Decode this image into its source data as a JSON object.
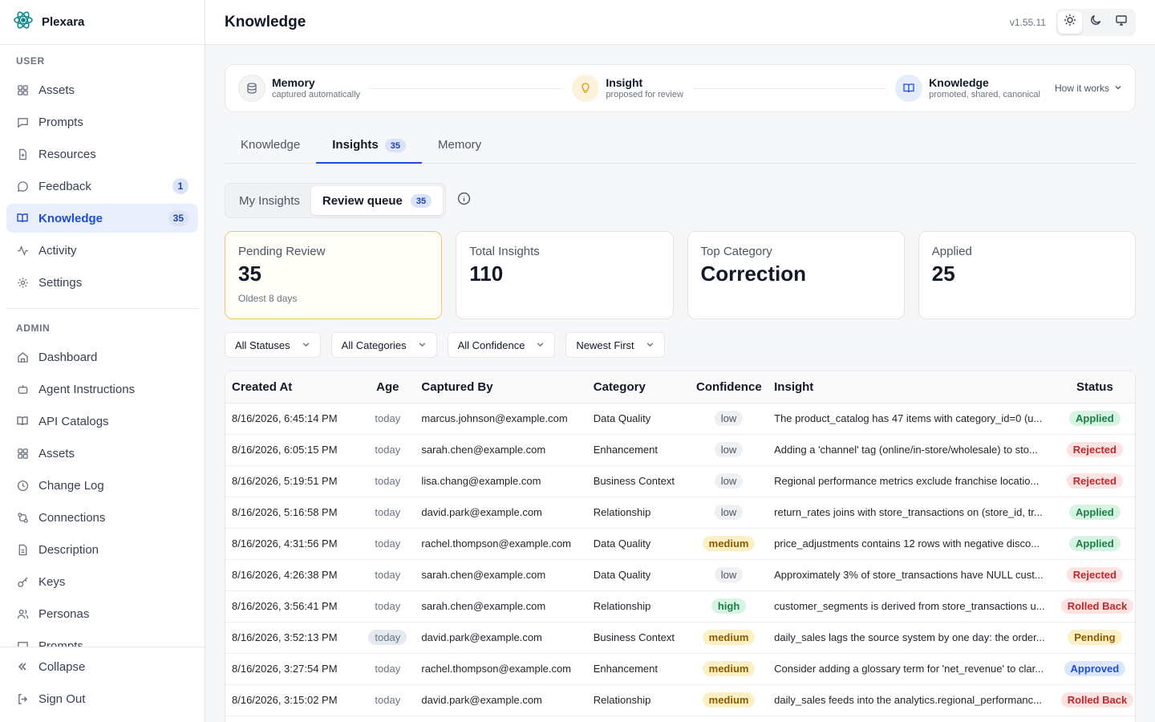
{
  "app": {
    "name": "Plexara",
    "version": "v1.55.11"
  },
  "page": {
    "title": "Knowledge"
  },
  "sidebar": {
    "user_label": "USER",
    "user_items": [
      {
        "label": "Assets",
        "icon": "grid-icon"
      },
      {
        "label": "Prompts",
        "icon": "message-square-icon"
      },
      {
        "label": "Resources",
        "icon": "file-plus-icon"
      },
      {
        "label": "Feedback",
        "icon": "message-circle-icon",
        "badge": "1"
      },
      {
        "label": "Knowledge",
        "icon": "book-open-icon",
        "badge": "35",
        "active": true
      },
      {
        "label": "Activity",
        "icon": "activity-icon"
      },
      {
        "label": "Settings",
        "icon": "gear-icon"
      }
    ],
    "admin_label": "ADMIN",
    "admin_items": [
      {
        "label": "Dashboard",
        "icon": "home-icon"
      },
      {
        "label": "Agent Instructions",
        "icon": "bot-icon"
      },
      {
        "label": "API Catalogs",
        "icon": "book-open-icon"
      },
      {
        "label": "Assets",
        "icon": "grid-icon"
      },
      {
        "label": "Change Log",
        "icon": "clock-icon"
      },
      {
        "label": "Connections",
        "icon": "link-icon"
      },
      {
        "label": "Description",
        "icon": "file-text-icon"
      },
      {
        "label": "Keys",
        "icon": "key-icon"
      },
      {
        "label": "Personas",
        "icon": "users-icon"
      },
      {
        "label": "Prompts",
        "icon": "message-square-icon"
      }
    ],
    "footer": {
      "collapse": "Collapse",
      "sign_out": "Sign Out"
    }
  },
  "flow": {
    "memory": {
      "title": "Memory",
      "subtitle": "captured automatically"
    },
    "insight": {
      "title": "Insight",
      "subtitle": "proposed for review"
    },
    "knowledge": {
      "title": "Knowledge",
      "subtitle": "promoted, shared, canonical"
    },
    "how_it_works": "How it works"
  },
  "tabs": [
    {
      "label": "Knowledge"
    },
    {
      "label": "Insights",
      "badge": "35",
      "active": true
    },
    {
      "label": "Memory"
    }
  ],
  "segment": {
    "my_insights": "My Insights",
    "review_queue": "Review queue",
    "review_count": "35"
  },
  "stats": {
    "pending": {
      "label": "Pending Review",
      "value": "35",
      "sub": "Oldest 8 days"
    },
    "total": {
      "label": "Total Insights",
      "value": "110"
    },
    "top_category": {
      "label": "Top Category",
      "value": "Correction"
    },
    "applied": {
      "label": "Applied",
      "value": "25"
    }
  },
  "filters": {
    "status": "All Statuses",
    "category": "All Categories",
    "confidence": "All Confidence",
    "sort": "Newest First"
  },
  "table": {
    "headers": {
      "created_at": "Created At",
      "age": "Age",
      "captured_by": "Captured By",
      "category": "Category",
      "confidence": "Confidence",
      "insight": "Insight",
      "status": "Status"
    },
    "rows": [
      {
        "created_at": "8/16/2026, 6:45:14 PM",
        "age": "today",
        "captured_by": "marcus.johnson@example.com",
        "category": "Data Quality",
        "confidence": "low",
        "insight": "The product_catalog has 47 items with category_id=0 (u...",
        "status": "Applied"
      },
      {
        "created_at": "8/16/2026, 6:05:15 PM",
        "age": "today",
        "captured_by": "sarah.chen@example.com",
        "category": "Enhancement",
        "confidence": "low",
        "insight": "Adding a 'channel' tag (online/in-store/wholesale) to sto...",
        "status": "Rejected"
      },
      {
        "created_at": "8/16/2026, 5:19:51 PM",
        "age": "today",
        "captured_by": "lisa.chang@example.com",
        "category": "Business Context",
        "confidence": "low",
        "insight": "Regional performance metrics exclude franchise locatio...",
        "status": "Rejected"
      },
      {
        "created_at": "8/16/2026, 5:16:58 PM",
        "age": "today",
        "captured_by": "david.park@example.com",
        "category": "Relationship",
        "confidence": "low",
        "insight": "return_rates joins with store_transactions on (store_id, tr...",
        "status": "Applied"
      },
      {
        "created_at": "8/16/2026, 4:31:56 PM",
        "age": "today",
        "captured_by": "rachel.thompson@example.com",
        "category": "Data Quality",
        "confidence": "medium",
        "insight": "price_adjustments contains 12 rows with negative disco...",
        "status": "Applied"
      },
      {
        "created_at": "8/16/2026, 4:26:38 PM",
        "age": "today",
        "captured_by": "sarah.chen@example.com",
        "category": "Data Quality",
        "confidence": "low",
        "insight": "Approximately 3% of store_transactions have NULL cust...",
        "status": "Rejected"
      },
      {
        "created_at": "8/16/2026, 3:56:41 PM",
        "age": "today",
        "captured_by": "sarah.chen@example.com",
        "category": "Relationship",
        "confidence": "high",
        "insight": "customer_segments is derived from store_transactions u...",
        "status": "Rolled Back"
      },
      {
        "created_at": "8/16/2026, 3:52:13 PM",
        "age": "today",
        "age_highlight": true,
        "captured_by": "david.park@example.com",
        "category": "Business Context",
        "confidence": "medium",
        "insight": "daily_sales lags the source system by one day: the order...",
        "status": "Pending"
      },
      {
        "created_at": "8/16/2026, 3:27:54 PM",
        "age": "today",
        "captured_by": "rachel.thompson@example.com",
        "category": "Enhancement",
        "confidence": "medium",
        "insight": "Consider adding a glossary term for 'net_revenue' to clar...",
        "status": "Approved"
      },
      {
        "created_at": "8/16/2026, 3:15:02 PM",
        "age": "today",
        "captured_by": "david.park@example.com",
        "category": "Relationship",
        "confidence": "medium",
        "insight": "daily_sales feeds into the analytics.regional_performanc...",
        "status": "Rolled Back"
      },
      {
        "created_at": "",
        "age": "",
        "captured_by": "",
        "category": "",
        "confidence": "",
        "insight": "",
        "status": ""
      }
    ]
  },
  "colors": {
    "accent": "#1d4ed8",
    "active_bg": "#e8eefb",
    "highlight_border": "#f5c56b"
  }
}
